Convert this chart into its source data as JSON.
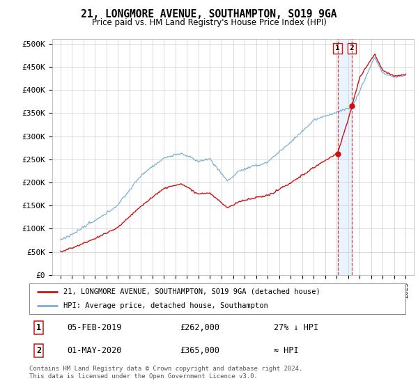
{
  "title": "21, LONGMORE AVENUE, SOUTHAMPTON, SO19 9GA",
  "subtitle": "Price paid vs. HM Land Registry's House Price Index (HPI)",
  "ylim": [
    0,
    500000
  ],
  "yticks": [
    0,
    50000,
    100000,
    150000,
    200000,
    250000,
    300000,
    350000,
    400000,
    450000,
    500000
  ],
  "ytick_labels": [
    "£0",
    "£50K",
    "£100K",
    "£150K",
    "£200K",
    "£250K",
    "£300K",
    "£350K",
    "£400K",
    "£450K",
    "£500K"
  ],
  "hpi_color": "#7ab0d4",
  "price_color": "#cc1111",
  "marker1_year": 2019.08,
  "marker1_price": 262000,
  "marker2_year": 2020.33,
  "marker2_price": 365000,
  "legend_entry1": "21, LONGMORE AVENUE, SOUTHAMPTON, SO19 9GA (detached house)",
  "legend_entry2": "HPI: Average price, detached house, Southampton",
  "table_row1": [
    "1",
    "05-FEB-2019",
    "£262,000",
    "27% ↓ HPI"
  ],
  "table_row2": [
    "2",
    "01-MAY-2020",
    "£365,000",
    "≈ HPI"
  ],
  "footer": "Contains HM Land Registry data © Crown copyright and database right 2024.\nThis data is licensed under the Open Government Licence v3.0.",
  "background_color": "#ffffff",
  "grid_color": "#cccccc",
  "shade_color": "#ddeeff"
}
